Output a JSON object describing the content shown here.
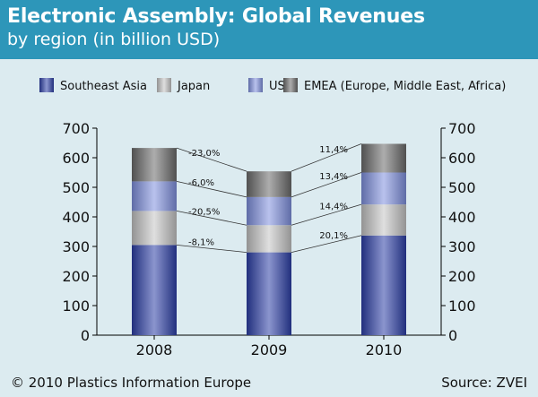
{
  "header": {
    "title": "Electronic Assembly: Global Revenues",
    "subtitle": "by region (in billion USD)"
  },
  "footer": {
    "copyright": "© 2010 Plastics Information Europe",
    "source": "Source: ZVEI"
  },
  "colors": {
    "header_bg": "#2d96b9",
    "page_bg": "#dcebf0",
    "Southeast Asia": "#2c3fa6",
    "Japan": "#c4c4c4",
    "USA": "#7f90de",
    "EMEA (Europe, Middle East, Africa)": "#6a6a6a"
  },
  "chart_data": {
    "type": "bar",
    "stacked": true,
    "categories": [
      "2008",
      "2009",
      "2010"
    ],
    "series": [
      {
        "name": "Southeast Asia",
        "values": [
          305,
          280,
          337
        ]
      },
      {
        "name": "Japan",
        "values": [
          115,
          92,
          105
        ]
      },
      {
        "name": "USA",
        "values": [
          100,
          95,
          108
        ]
      },
      {
        "name": "EMEA (Europe, Middle East, Africa)",
        "values": [
          113,
          87,
          97
        ]
      }
    ],
    "change_labels": {
      "2008_2009": [
        "-8,1%",
        "-20,5%",
        "-6,0%",
        "-23,0%"
      ],
      "2009_2010": [
        "20,1%",
        "14,4%",
        "13,4%",
        "11,4%"
      ]
    },
    "ylim": [
      0,
      700
    ],
    "yticks": [
      0,
      100,
      200,
      300,
      400,
      500,
      600,
      700
    ],
    "dual_y_axis": true,
    "legend_position": "top",
    "grid": false
  }
}
